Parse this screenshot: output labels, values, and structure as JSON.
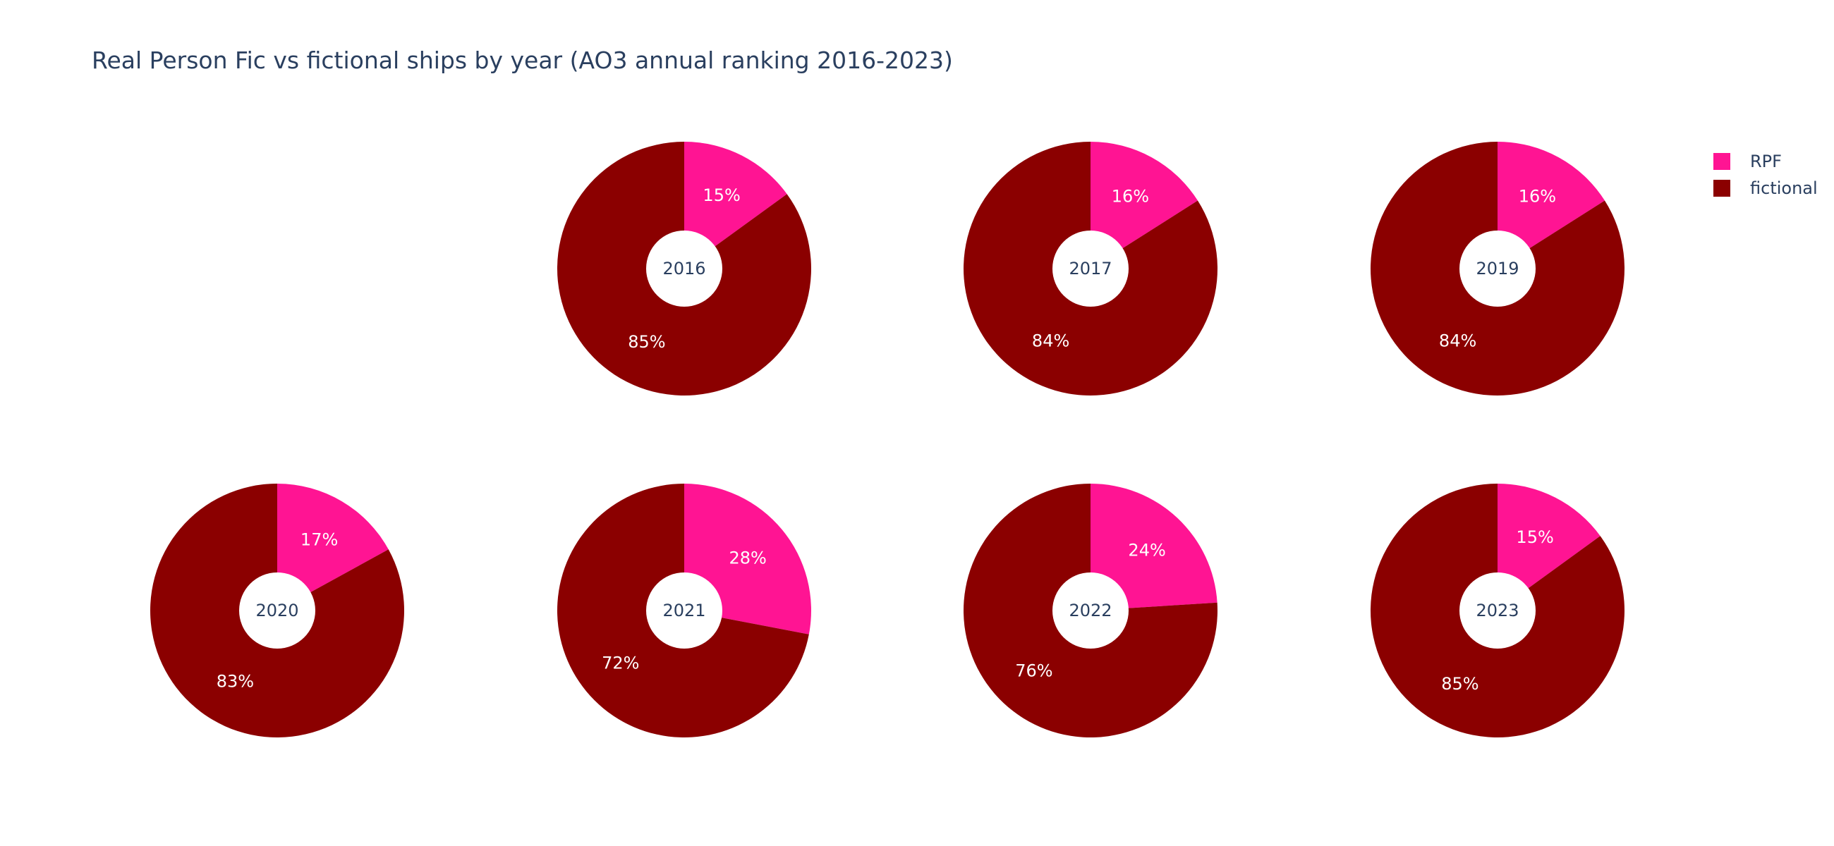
{
  "chart_data": {
    "type": "pie",
    "title": "Real Person Fic vs fictional ships by year (AO3 annual ranking 2016-2023)",
    "legend_position": "top-right",
    "categories": [
      "RPF",
      "fictional"
    ],
    "colors": {
      "RPF": "#ff1493",
      "fictional": "#8b0000"
    },
    "pies": [
      {
        "label": "2016",
        "values": [
          15,
          85
        ],
        "text": [
          "15%",
          "85%"
        ]
      },
      {
        "label": "2017",
        "values": [
          16,
          84
        ],
        "text": [
          "16%",
          "84%"
        ]
      },
      {
        "label": "2019",
        "values": [
          16,
          84
        ],
        "text": [
          "16%",
          "84%"
        ]
      },
      {
        "label": "2020",
        "values": [
          17,
          83
        ],
        "text": [
          "17%",
          "83%"
        ]
      },
      {
        "label": "2021",
        "values": [
          28,
          72
        ],
        "text": [
          "28%",
          "72%"
        ]
      },
      {
        "label": "2022",
        "values": [
          24,
          76
        ],
        "text": [
          "24%",
          "76%"
        ]
      },
      {
        "label": "2023",
        "values": [
          15,
          85
        ],
        "text": [
          "15%",
          "85%"
        ]
      }
    ]
  }
}
